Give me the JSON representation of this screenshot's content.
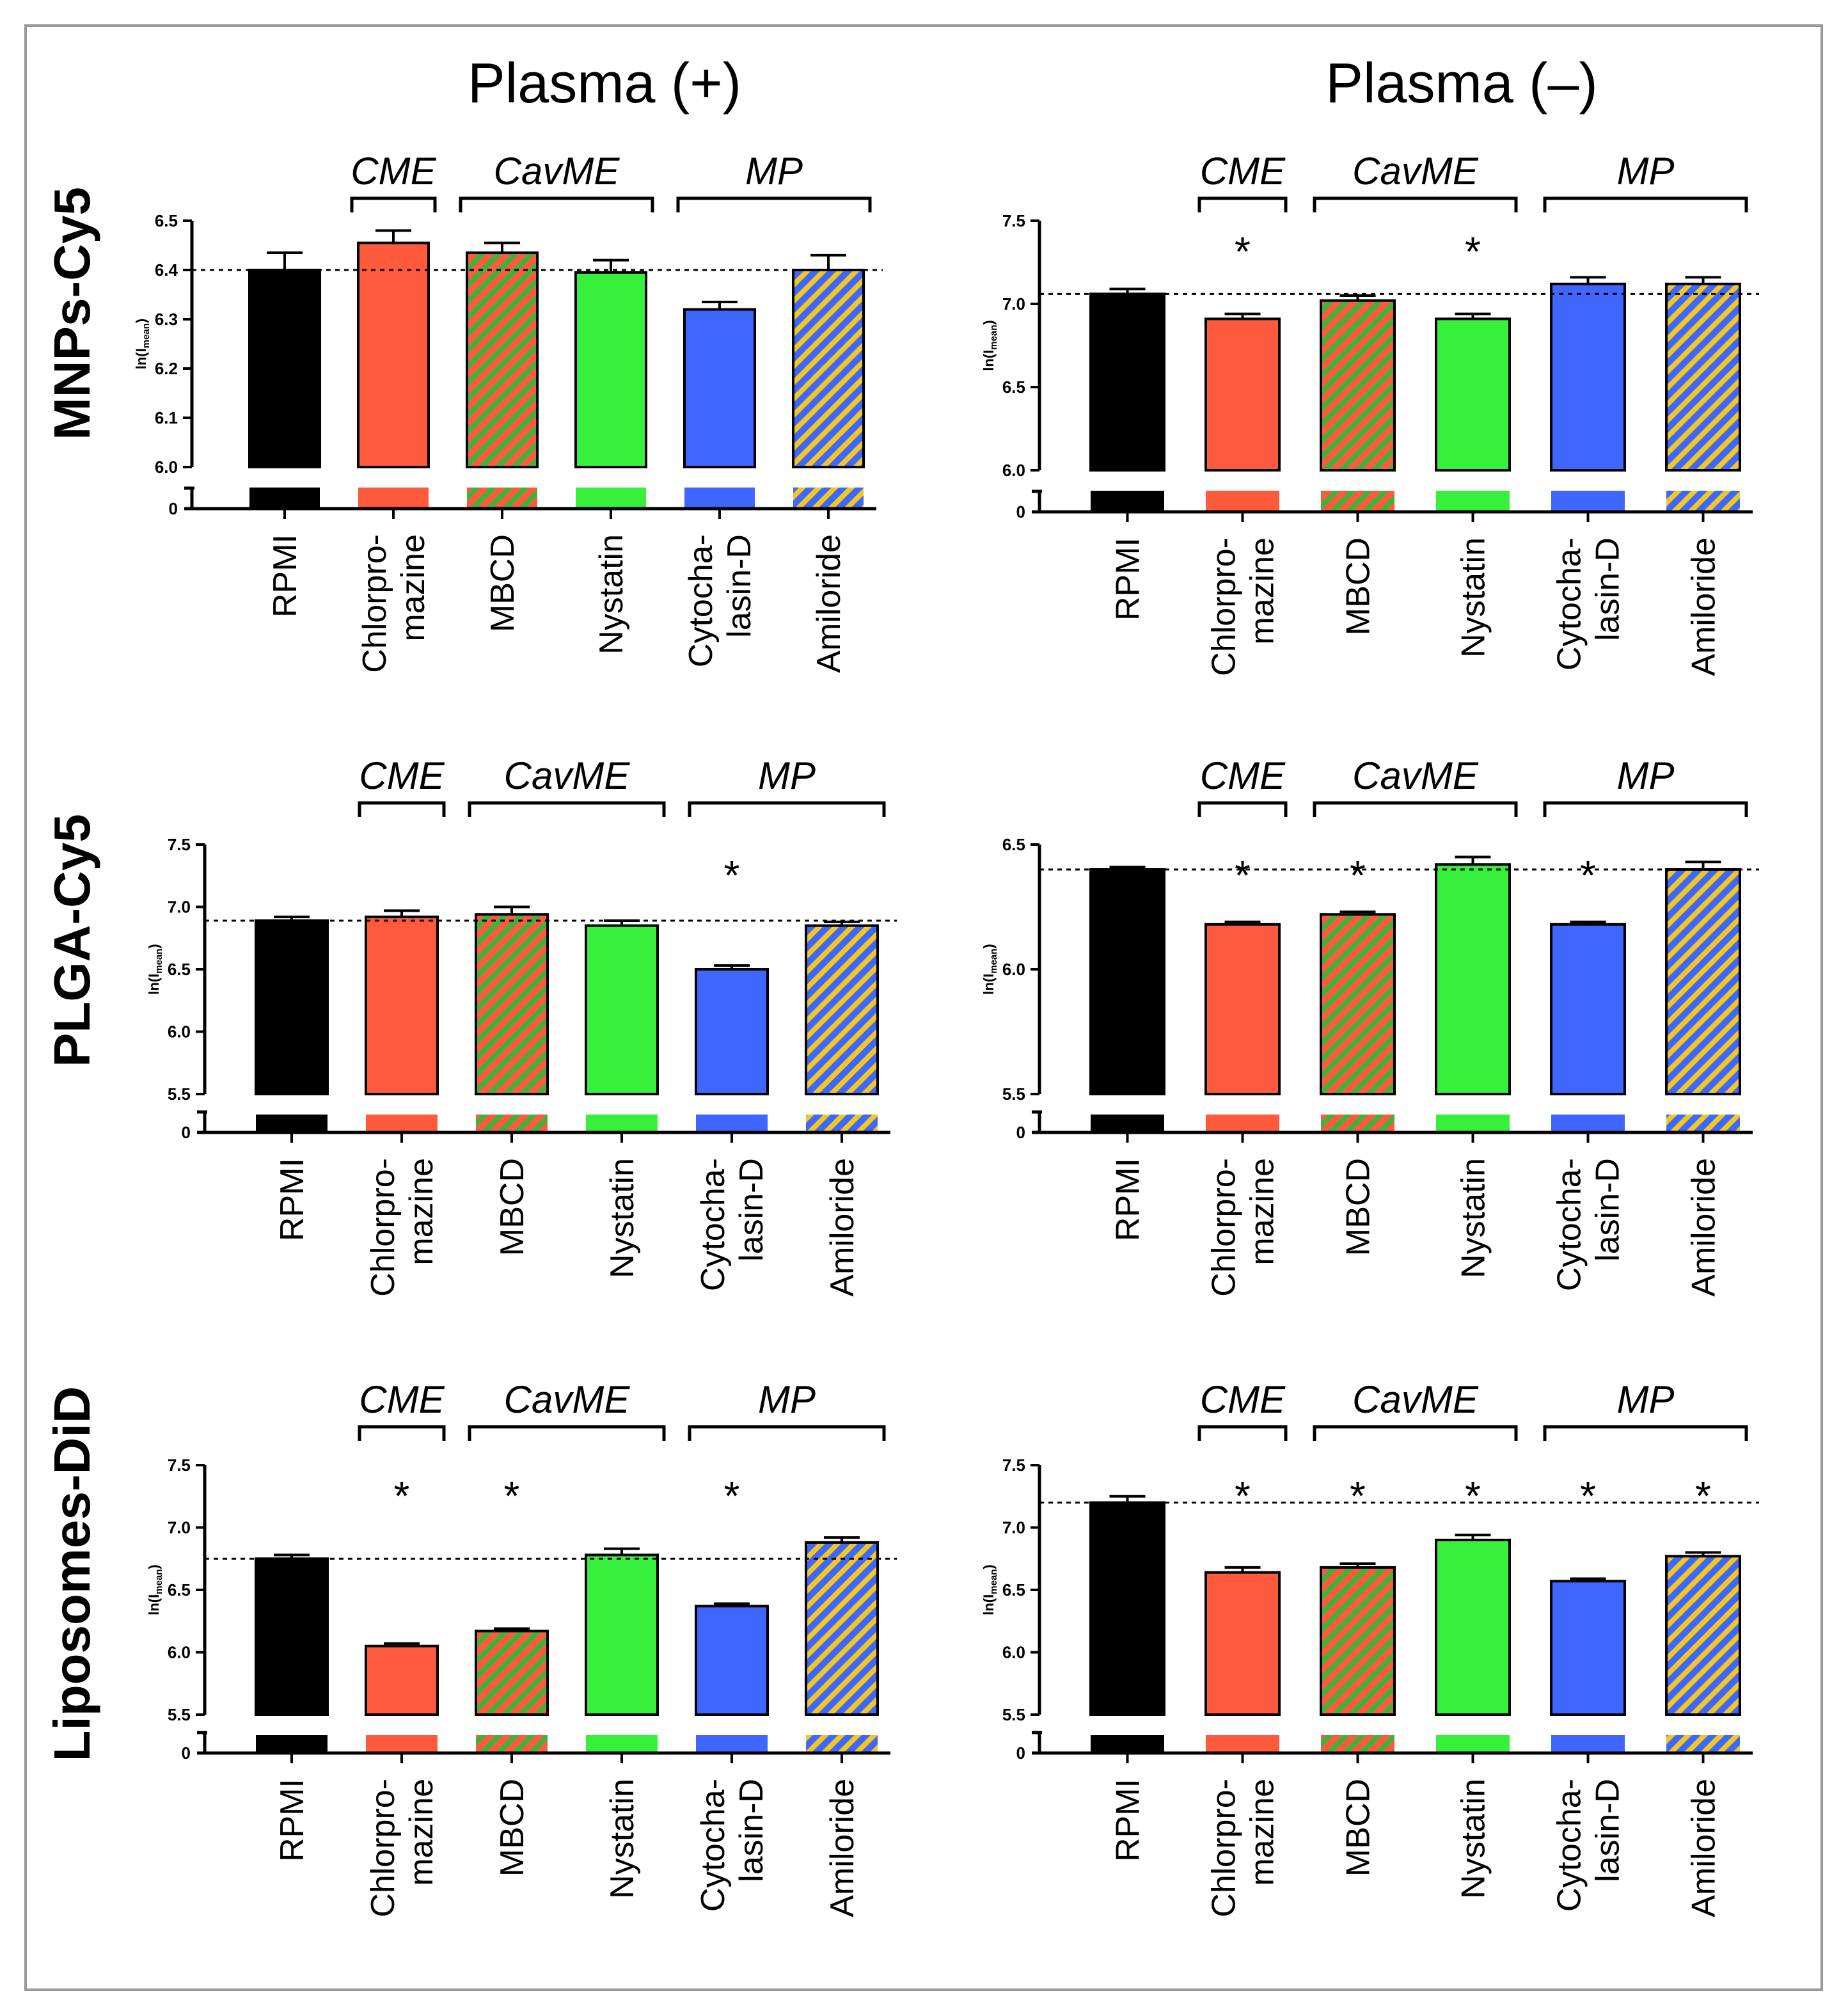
{
  "column_titles": [
    "Plasma (+)",
    "Plasma (–)"
  ],
  "row_labels": [
    "MNPs-Cy5",
    "PLGA-Cy5",
    "Liposomes-DiD"
  ],
  "y_axis_label": "ln(I",
  "y_axis_label_subscript": "mean",
  "y_axis_label_close": ")",
  "categories": [
    "RPMI",
    "Chlorpro-mazine",
    "MBCD",
    "Nystatin",
    "Cytocha-lasin-D",
    "Amiloride"
  ],
  "category_lines": [
    [
      "RPMI"
    ],
    [
      "Chlorpro-",
      "mazine"
    ],
    [
      "MBCD"
    ],
    [
      "Nystatin"
    ],
    [
      "Cytocha-",
      "lasin-D"
    ],
    [
      "Amiloride"
    ]
  ],
  "groups": [
    {
      "label": "CME",
      "from": 1,
      "to": 1
    },
    {
      "label": "CavME",
      "from": 2,
      "to": 3
    },
    {
      "label": "MP",
      "from": 4,
      "to": 5
    }
  ],
  "significance_symbol": "*",
  "colors": {
    "RPMI": "#000000",
    "Chlorpromazine": "#ff5a3c",
    "MBCD_base": "#ff5a3c",
    "MBCD_stripe": "#3cb43c",
    "Nystatin": "#37f03c",
    "Cytochalasin-D": "#3f66ff",
    "Amiloride_base": "#3f66ff",
    "Amiloride_stripe": "#f0c820"
  },
  "chart_data": [
    {
      "type": "bar",
      "nanoparticle": "MNPs-Cy5",
      "plasma": "Plasma (+)",
      "ylim": [
        6.0,
        6.5
      ],
      "yticks": [
        "6.5",
        "6.4",
        "6.3",
        "6.2",
        "6.1",
        "6.0"
      ],
      "ytick_values": [
        6.5,
        6.4,
        6.3,
        6.2,
        6.1,
        6.0
      ],
      "reference_line": 6.4,
      "values": [
        6.4,
        6.455,
        6.435,
        6.395,
        6.32,
        6.4
      ],
      "errors": [
        0.035,
        0.025,
        0.02,
        0.025,
        0.015,
        0.03
      ],
      "significant": [
        false,
        false,
        false,
        false,
        false,
        false
      ]
    },
    {
      "type": "bar",
      "nanoparticle": "MNPs-Cy5",
      "plasma": "Plasma (–)",
      "ylim": [
        6.0,
        7.5
      ],
      "yticks": [
        "7.5",
        "7.0",
        "6.5",
        "6.0"
      ],
      "ytick_values": [
        7.5,
        7.0,
        6.5,
        6.0
      ],
      "reference_line": 7.06,
      "values": [
        7.06,
        6.91,
        7.02,
        6.91,
        7.12,
        7.12
      ],
      "errors": [
        0.03,
        0.03,
        0.03,
        0.03,
        0.04,
        0.04
      ],
      "significant": [
        false,
        true,
        false,
        true,
        false,
        false
      ]
    },
    {
      "type": "bar",
      "nanoparticle": "PLGA-Cy5",
      "plasma": "Plasma (+)",
      "ylim": [
        5.5,
        7.5
      ],
      "yticks": [
        "7.5",
        "7.0",
        "6.5",
        "6.0",
        "5.5"
      ],
      "ytick_values": [
        7.5,
        7.0,
        6.5,
        6.0,
        5.5
      ],
      "reference_line": 6.89,
      "values": [
        6.89,
        6.92,
        6.94,
        6.85,
        6.5,
        6.85
      ],
      "errors": [
        0.03,
        0.05,
        0.06,
        0.04,
        0.03,
        0.03
      ],
      "significant": [
        false,
        false,
        false,
        false,
        true,
        false
      ]
    },
    {
      "type": "bar",
      "nanoparticle": "PLGA-Cy5",
      "plasma": "Plasma (–)",
      "ylim": [
        5.5,
        6.5
      ],
      "yticks": [
        "6.5",
        "6.0",
        "5.5"
      ],
      "ytick_values": [
        6.5,
        6.0,
        5.5
      ],
      "reference_line": 6.4,
      "values": [
        6.4,
        6.18,
        6.22,
        6.42,
        6.18,
        6.4
      ],
      "errors": [
        0.01,
        0.01,
        0.01,
        0.03,
        0.01,
        0.03
      ],
      "significant": [
        false,
        true,
        true,
        false,
        true,
        false
      ]
    },
    {
      "type": "bar",
      "nanoparticle": "Liposomes-DiD",
      "plasma": "Plasma (+)",
      "ylim": [
        5.5,
        7.5
      ],
      "yticks": [
        "7.5",
        "7.0",
        "6.5",
        "6.0",
        "5.5"
      ],
      "ytick_values": [
        7.5,
        7.0,
        6.5,
        6.0,
        5.5
      ],
      "reference_line": 6.75,
      "values": [
        6.75,
        6.05,
        6.17,
        6.78,
        6.37,
        6.88
      ],
      "errors": [
        0.03,
        0.02,
        0.02,
        0.05,
        0.02,
        0.04
      ],
      "significant": [
        false,
        true,
        true,
        false,
        true,
        false
      ]
    },
    {
      "type": "bar",
      "nanoparticle": "Liposomes-DiD",
      "plasma": "Plasma (–)",
      "ylim": [
        5.5,
        7.5
      ],
      "yticks": [
        "7.5",
        "7.0",
        "6.5",
        "6.0",
        "5.5"
      ],
      "ytick_values": [
        7.5,
        7.0,
        6.5,
        6.0,
        5.5
      ],
      "reference_line": 7.2,
      "values": [
        7.2,
        6.64,
        6.68,
        6.9,
        6.57,
        6.77
      ],
      "errors": [
        0.05,
        0.04,
        0.03,
        0.04,
        0.02,
        0.03
      ],
      "significant": [
        false,
        true,
        true,
        true,
        true,
        true
      ]
    }
  ]
}
